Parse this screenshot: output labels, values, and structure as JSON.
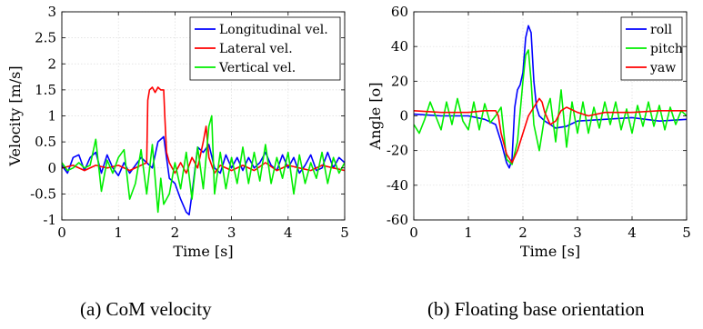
{
  "captions": {
    "a": "(a)  CoM velocity",
    "b": "(b)  Floating base orientation"
  },
  "chart_data": [
    {
      "id": "velocity",
      "type": "line",
      "xlabel": "Time [s]",
      "ylabel": "Velocity [m/s]",
      "xlim": [
        0,
        5
      ],
      "ylim": [
        -1,
        3
      ],
      "xticks": [
        0,
        1,
        2,
        3,
        4,
        5
      ],
      "yticks": [
        -1,
        -0.5,
        0,
        0.5,
        1,
        1.5,
        2,
        2.5,
        3
      ],
      "ytick_labels": [
        "-1",
        "-0.5",
        "0",
        "0.5",
        "1",
        "1.5",
        "2",
        "2.5",
        "3"
      ],
      "grid": true,
      "legend_position": "top-right",
      "series": [
        {
          "name": "Longitudinal vel.",
          "color": "#0000ff",
          "x": [
            0,
            0.1,
            0.2,
            0.3,
            0.4,
            0.5,
            0.6,
            0.7,
            0.8,
            0.9,
            1.0,
            1.1,
            1.2,
            1.3,
            1.4,
            1.5,
            1.6,
            1.7,
            1.8,
            1.85,
            1.9,
            2.0,
            2.1,
            2.2,
            2.25,
            2.3,
            2.4,
            2.5,
            2.6,
            2.7,
            2.8,
            2.9,
            3.0,
            3.1,
            3.2,
            3.3,
            3.4,
            3.5,
            3.6,
            3.7,
            3.8,
            3.9,
            4.0,
            4.1,
            4.2,
            4.3,
            4.4,
            4.5,
            4.6,
            4.7,
            4.8,
            4.9,
            5.0
          ],
          "y": [
            0.05,
            -0.1,
            0.2,
            0.25,
            -0.05,
            0.2,
            0.3,
            -0.1,
            0.25,
            0.0,
            -0.15,
            0.1,
            -0.1,
            0.05,
            0.2,
            0.1,
            0.0,
            0.5,
            0.6,
            0.2,
            -0.2,
            -0.3,
            -0.6,
            -0.85,
            -0.9,
            -0.5,
            0.4,
            0.3,
            0.45,
            0.0,
            -0.1,
            0.25,
            0.0,
            0.2,
            -0.05,
            0.2,
            0.0,
            0.1,
            0.3,
            0.05,
            -0.05,
            0.25,
            0.0,
            0.2,
            -0.1,
            0.05,
            0.25,
            -0.05,
            0.0,
            0.3,
            0.0,
            0.2,
            0.1
          ]
        },
        {
          "name": "Lateral vel.",
          "color": "#ff0000",
          "x": [
            0,
            0.2,
            0.4,
            0.6,
            0.8,
            1.0,
            1.2,
            1.4,
            1.5,
            1.52,
            1.55,
            1.6,
            1.65,
            1.7,
            1.75,
            1.8,
            1.82,
            1.85,
            1.9,
            2.0,
            2.1,
            2.2,
            2.3,
            2.4,
            2.5,
            2.55,
            2.6,
            2.7,
            2.8,
            3.0,
            3.2,
            3.4,
            3.6,
            3.8,
            4.0,
            4.2,
            4.4,
            4.6,
            4.8,
            5.0
          ],
          "y": [
            0.0,
            0.05,
            -0.05,
            0.05,
            0.0,
            0.05,
            -0.05,
            0.05,
            0.1,
            1.3,
            1.5,
            1.55,
            1.45,
            1.55,
            1.5,
            1.5,
            1.0,
            0.3,
            0.1,
            -0.1,
            0.1,
            -0.1,
            0.2,
            0.0,
            0.5,
            0.8,
            0.2,
            -0.1,
            0.05,
            -0.05,
            0.05,
            -0.05,
            0.1,
            -0.05,
            0.05,
            0.0,
            -0.05,
            0.05,
            0.0,
            -0.05
          ]
        },
        {
          "name": "Vertical vel.",
          "color": "#00ee00",
          "x": [
            0,
            0.1,
            0.2,
            0.3,
            0.4,
            0.5,
            0.6,
            0.7,
            0.8,
            0.9,
            1.0,
            1.1,
            1.2,
            1.3,
            1.4,
            1.5,
            1.6,
            1.7,
            1.75,
            1.8,
            1.9,
            2.0,
            2.1,
            2.2,
            2.3,
            2.4,
            2.5,
            2.6,
            2.65,
            2.7,
            2.8,
            2.9,
            3.0,
            3.1,
            3.2,
            3.3,
            3.4,
            3.5,
            3.6,
            3.7,
            3.8,
            3.9,
            4.0,
            4.1,
            4.2,
            4.3,
            4.4,
            4.5,
            4.6,
            4.7,
            4.8,
            4.9,
            5.0
          ],
          "y": [
            0.1,
            -0.05,
            0.0,
            0.1,
            0.0,
            0.05,
            0.55,
            -0.45,
            0.15,
            -0.1,
            0.2,
            0.35,
            -0.6,
            -0.3,
            0.35,
            -0.5,
            0.45,
            -0.85,
            -0.2,
            -0.7,
            -0.5,
            0.1,
            -0.4,
            0.3,
            -0.6,
            0.4,
            -0.4,
            0.8,
            1.0,
            -0.5,
            0.3,
            -0.4,
            0.2,
            -0.3,
            0.4,
            -0.3,
            0.3,
            -0.25,
            0.45,
            -0.3,
            0.2,
            -0.2,
            0.3,
            -0.5,
            0.25,
            -0.3,
            0.1,
            -0.2,
            0.3,
            -0.3,
            0.2,
            -0.1,
            0.1
          ]
        }
      ]
    },
    {
      "id": "orientation",
      "type": "line",
      "xlabel": "Time [s]",
      "ylabel": "Angle [o]",
      "xlim": [
        0,
        5
      ],
      "ylim": [
        -60,
        60
      ],
      "xticks": [
        0,
        1,
        2,
        3,
        4,
        5
      ],
      "yticks": [
        -60,
        -40,
        -20,
        0,
        20,
        40,
        60
      ],
      "ytick_labels": [
        "-60",
        "-40",
        "-20",
        "0",
        "20",
        "40",
        "60"
      ],
      "grid": true,
      "legend_position": "top-right",
      "series": [
        {
          "name": "roll",
          "color": "#0000ff",
          "x": [
            0,
            0.5,
            1.0,
            1.3,
            1.5,
            1.6,
            1.7,
            1.75,
            1.8,
            1.85,
            1.9,
            1.95,
            2.0,
            2.05,
            2.1,
            2.15,
            2.2,
            2.25,
            2.3,
            2.4,
            2.5,
            2.6,
            2.8,
            3.0,
            3.5,
            4.0,
            4.5,
            5.0
          ],
          "y": [
            1,
            0,
            0,
            -2,
            -5,
            -15,
            -27,
            -30,
            -25,
            5,
            15,
            18,
            25,
            45,
            52,
            48,
            20,
            5,
            0,
            -3,
            -5,
            -7,
            -6,
            -3,
            -2,
            -1,
            -3,
            -2
          ]
        },
        {
          "name": "pitch",
          "color": "#00ee00",
          "x": [
            0,
            0.1,
            0.2,
            0.3,
            0.4,
            0.5,
            0.6,
            0.7,
            0.8,
            0.9,
            1.0,
            1.1,
            1.2,
            1.3,
            1.4,
            1.5,
            1.6,
            1.7,
            1.8,
            1.9,
            2.0,
            2.05,
            2.1,
            2.15,
            2.2,
            2.3,
            2.4,
            2.5,
            2.6,
            2.7,
            2.8,
            2.9,
            3.0,
            3.1,
            3.2,
            3.3,
            3.4,
            3.5,
            3.6,
            3.7,
            3.8,
            3.9,
            4.0,
            4.1,
            4.2,
            4.3,
            4.4,
            4.5,
            4.6,
            4.7,
            4.8,
            4.9,
            5.0
          ],
          "y": [
            -5,
            -10,
            -2,
            8,
            0,
            -8,
            8,
            -5,
            10,
            -3,
            -8,
            8,
            -8,
            7,
            -4,
            0,
            5,
            -25,
            -28,
            -15,
            20,
            35,
            38,
            20,
            -5,
            -20,
            0,
            10,
            -15,
            15,
            -18,
            8,
            -10,
            8,
            -10,
            5,
            -7,
            8,
            -5,
            8,
            -8,
            4,
            -10,
            6,
            -6,
            8,
            -6,
            6,
            -8,
            5,
            -5,
            3,
            0
          ]
        },
        {
          "name": "yaw",
          "color": "#ff0000",
          "x": [
            0,
            0.5,
            1.0,
            1.3,
            1.5,
            1.55,
            1.6,
            1.7,
            1.8,
            1.9,
            2.0,
            2.1,
            2.2,
            2.3,
            2.35,
            2.4,
            2.5,
            2.6,
            2.7,
            2.8,
            3.0,
            3.2,
            3.5,
            4.0,
            4.5,
            5.0
          ],
          "y": [
            3,
            2,
            2,
            3,
            3,
            0,
            -10,
            -22,
            -27,
            -20,
            -10,
            0,
            5,
            10,
            8,
            2,
            -5,
            -3,
            3,
            5,
            2,
            0,
            2,
            2,
            3,
            3
          ]
        }
      ]
    }
  ]
}
